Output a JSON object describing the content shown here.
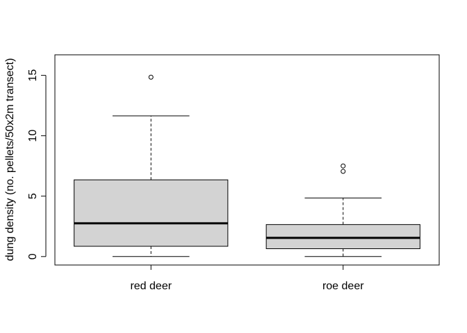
{
  "chart_data": {
    "type": "box",
    "title": "",
    "xlabel": "",
    "ylabel": "dung density (no. pellets/50x2m transect)",
    "ylim": [
      -0.7,
      16.7
    ],
    "yticks": [
      0,
      5,
      10,
      15
    ],
    "grid": false,
    "categories": [
      "red deer",
      "roe deer"
    ],
    "boxes": [
      {
        "name": "red deer",
        "whisker_low": 0,
        "q1": 0.85,
        "median": 2.75,
        "q3": 6.35,
        "whisker_high": 11.65,
        "outliers": [
          14.85
        ]
      },
      {
        "name": "roe deer",
        "whisker_low": 0,
        "q1": 0.65,
        "median": 1.55,
        "q3": 2.65,
        "whisker_high": 4.85,
        "outliers": [
          7.05,
          7.5
        ]
      }
    ],
    "colors": {
      "box_fill": "#d3d3d3",
      "stroke": "#000000"
    }
  }
}
